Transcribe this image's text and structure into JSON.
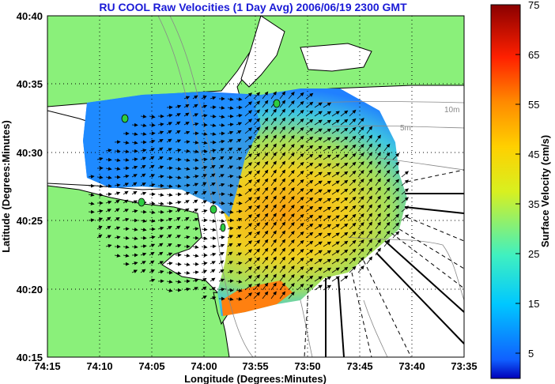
{
  "title": "RU COOL Raw Velocities (1 Day Avg) 2006/06/19 2300 GMT",
  "axes": {
    "xlabel": "Longitude (Degrees:Minutes)",
    "ylabel": "Latitude (Degrees:Minutes)",
    "xticks": [
      "74:15",
      "74:10",
      "74:05",
      "74:00",
      "73:55",
      "73:50",
      "73:45",
      "73:40",
      "73:35"
    ],
    "yticks": [
      "40:40",
      "40:35",
      "40:30",
      "40:25",
      "40:20",
      "40:15"
    ]
  },
  "colorbar": {
    "label": "Surface Velocity (cm/s)",
    "ticks": [
      "75",
      "65",
      "55",
      "45",
      "35",
      "25",
      "15",
      "5"
    ],
    "range": [
      0,
      75
    ]
  },
  "contours": [
    "10m",
    "5m"
  ],
  "colors": {
    "land": "#8af07a",
    "water": "#ffffff",
    "title": "#1a1ad6",
    "station": "#2ecc40"
  }
}
